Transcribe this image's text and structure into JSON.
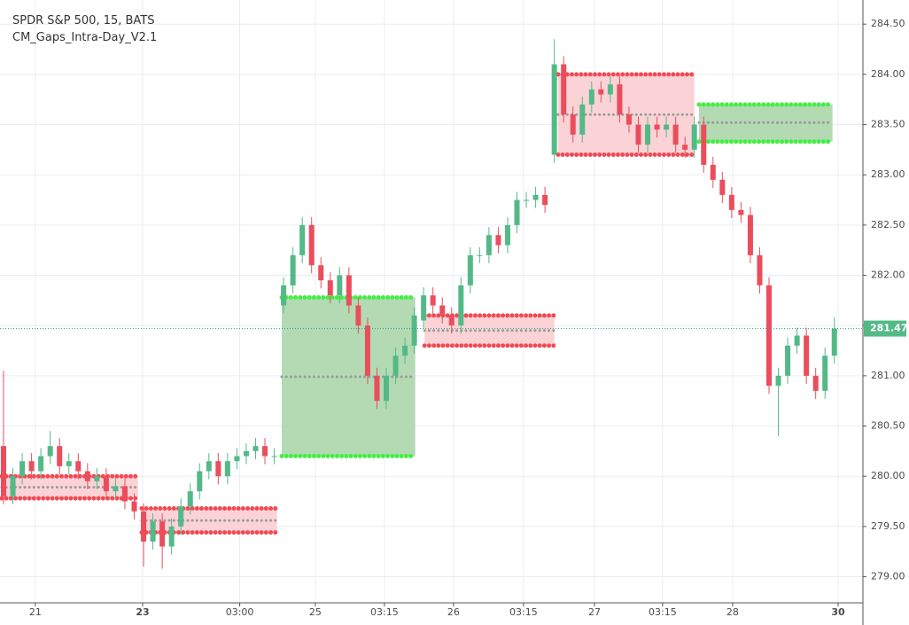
{
  "chart_data": {
    "type": "candlestick",
    "title": "SPDR S&P 500, 15, BATS",
    "subtitle": "CM_Gaps_Intra-Day_V2.1",
    "up_color": "#53b987",
    "down_color": "#eb4d5c",
    "grid": true,
    "xlim": [
      -0.38,
      92.06
    ],
    "ylim": [
      278.74,
      284.74
    ],
    "yticks": [
      {
        "value": 279,
        "label": "279.00"
      },
      {
        "value": 279.5,
        "label": "279.50"
      },
      {
        "value": 280,
        "label": "280.00"
      },
      {
        "value": 280.5,
        "label": "280.50"
      },
      {
        "value": 281,
        "label": "281.00"
      },
      {
        "value": 281.5,
        "label": "281.50"
      },
      {
        "value": 282,
        "label": "282.00"
      },
      {
        "value": 282.5,
        "label": "282.50"
      },
      {
        "value": 283,
        "label": "283.00"
      },
      {
        "value": 283.5,
        "label": "283.50"
      },
      {
        "value": 284,
        "label": "284.00"
      },
      {
        "value": 284.5,
        "label": "284.50"
      }
    ],
    "xticks": [
      {
        "value": 3.4,
        "label": "21"
      },
      {
        "value": 14.9,
        "label": "23"
      },
      {
        "value": 25.3,
        "label": "03:00"
      },
      {
        "value": 33.4,
        "label": "25"
      },
      {
        "value": 40.8,
        "label": "03:15"
      },
      {
        "value": 48.2,
        "label": "26"
      },
      {
        "value": 55.7,
        "label": "03:15"
      },
      {
        "value": 63.3,
        "label": "27"
      },
      {
        "value": 70.6,
        "label": "03:15"
      },
      {
        "value": 78.1,
        "label": "28"
      },
      {
        "value": 89.4,
        "label": "30"
      }
    ],
    "last": 281.47,
    "open": [
      280.3,
      279.8,
      280.0,
      280.15,
      280.05,
      280.2,
      280.3,
      280.1,
      280.15,
      280.05,
      279.95,
      280.0,
      279.85,
      279.9,
      279.75,
      279.65,
      279.35,
      279.55,
      279.3,
      279.5,
      279.7,
      279.85,
      280.05,
      280.15,
      280.0,
      280.15,
      280.2,
      280.25,
      280.3,
      280.2,
      281.7,
      281.9,
      282.2,
      282.5,
      282.1,
      281.95,
      281.8,
      282.0,
      281.7,
      281.5,
      281.0,
      280.75,
      281.0,
      281.2,
      281.3,
      281.55,
      281.8,
      281.7,
      281.6,
      281.5,
      281.9,
      282.2,
      282.2,
      282.4,
      282.3,
      282.5,
      282.75,
      282.75,
      282.8,
      283.2,
      284.1,
      283.6,
      283.4,
      283.7,
      283.85,
      283.8,
      283.9,
      283.6,
      283.5,
      283.3,
      283.5,
      283.45,
      283.5,
      283.3,
      283.25,
      283.5,
      283.1,
      282.95,
      282.8,
      282.65,
      282.6,
      282.2,
      281.9,
      280.9,
      281.0,
      281.3,
      281.4,
      281.0,
      280.85,
      281.2
    ],
    "high": [
      281.05,
      280.08,
      280.23,
      280.23,
      280.28,
      280.45,
      280.38,
      280.23,
      280.23,
      280.13,
      280.08,
      280.08,
      279.98,
      279.98,
      279.83,
      279.73,
      279.63,
      279.63,
      279.58,
      279.78,
      279.93,
      280.13,
      280.23,
      280.23,
      280.23,
      280.28,
      280.33,
      280.38,
      280.38,
      280.28,
      281.98,
      282.28,
      282.58,
      282.58,
      282.18,
      282.03,
      282.08,
      282.08,
      281.78,
      281.58,
      281.08,
      281.08,
      281.28,
      281.38,
      281.68,
      281.88,
      281.88,
      281.78,
      281.68,
      281.98,
      282.28,
      282.28,
      282.48,
      282.48,
      282.58,
      282.83,
      282.83,
      282.88,
      282.88,
      284.35,
      284.18,
      283.68,
      283.78,
      283.93,
      283.93,
      283.98,
      283.98,
      283.68,
      283.58,
      283.58,
      283.58,
      283.58,
      283.58,
      283.38,
      283.58,
      283.58,
      283.18,
      283.03,
      282.88,
      282.73,
      282.68,
      282.28,
      281.98,
      281.08,
      281.38,
      281.48,
      281.48,
      281.08,
      281.28,
      281.58
    ],
    "low": [
      279.72,
      279.72,
      279.92,
      279.97,
      279.97,
      280.12,
      280.02,
      280.02,
      279.97,
      279.87,
      279.87,
      279.77,
      279.77,
      279.67,
      279.57,
      279.1,
      279.27,
      279.08,
      279.22,
      279.42,
      279.62,
      279.77,
      279.97,
      279.92,
      279.92,
      280.07,
      280.12,
      280.17,
      280.12,
      280.12,
      281.62,
      281.82,
      282.12,
      282.02,
      281.87,
      281.72,
      281.72,
      281.62,
      281.42,
      280.92,
      280.67,
      280.67,
      280.92,
      281.12,
      281.22,
      281.47,
      281.62,
      281.52,
      281.42,
      281.42,
      281.82,
      282.12,
      282.12,
      282.22,
      282.22,
      282.42,
      282.67,
      282.67,
      282.62,
      283.12,
      283.52,
      283.32,
      283.32,
      283.62,
      283.72,
      283.72,
      283.52,
      283.42,
      283.22,
      283.22,
      283.37,
      283.37,
      283.22,
      283.17,
      283.17,
      283.02,
      282.87,
      282.72,
      282.57,
      282.52,
      282.12,
      281.82,
      280.82,
      280.4,
      280.92,
      281.22,
      280.92,
      280.77,
      280.77,
      281.12
    ],
    "close": [
      279.8,
      280.0,
      280.15,
      280.05,
      280.2,
      280.3,
      280.1,
      280.15,
      280.05,
      279.95,
      280.0,
      279.85,
      279.9,
      279.75,
      279.65,
      279.35,
      279.55,
      279.3,
      279.5,
      279.7,
      279.85,
      280.05,
      280.15,
      280.0,
      280.15,
      280.2,
      280.25,
      280.3,
      280.2,
      280.2,
      281.9,
      282.2,
      282.5,
      282.1,
      281.95,
      281.8,
      282.0,
      281.7,
      281.5,
      281.0,
      280.75,
      281.0,
      281.2,
      281.3,
      281.6,
      281.8,
      281.7,
      281.6,
      281.5,
      281.9,
      282.2,
      282.2,
      282.4,
      282.3,
      282.5,
      282.75,
      282.75,
      282.8,
      282.7,
      284.1,
      283.6,
      283.4,
      283.7,
      283.85,
      283.8,
      283.9,
      283.6,
      283.5,
      283.3,
      283.5,
      283.45,
      283.5,
      283.3,
      283.25,
      283.5,
      283.1,
      282.95,
      282.8,
      282.65,
      282.6,
      282.2,
      281.9,
      280.9,
      281.0,
      281.3,
      281.4,
      281.0,
      280.85,
      281.2,
      281.47
    ],
    "gaps": [
      {
        "start": -0.2,
        "end": 14.4,
        "top": 280.0,
        "bottom": 279.78,
        "mid": 279.89,
        "color": "#f04a55",
        "fill": "#fbd3d6"
      },
      {
        "start": 14.8,
        "end": 29.3,
        "top": 279.68,
        "bottom": 279.44,
        "mid": 279.56,
        "color": "#f04a55",
        "fill": "#fbd3d6"
      },
      {
        "start": 29.8,
        "end": 44.1,
        "top": 281.78,
        "bottom": 280.2,
        "mid": 280.99,
        "color": "#44ee44",
        "fill": "#b3dab3"
      },
      {
        "start": 45.1,
        "end": 59.0,
        "top": 281.6,
        "bottom": 281.3,
        "mid": 281.45,
        "color": "#f04a55",
        "fill": "#fbd3d6"
      },
      {
        "start": 59.4,
        "end": 74.0,
        "top": 284.0,
        "bottom": 283.2,
        "mid": 283.6,
        "color": "#f04a55",
        "fill": "#fbd3d6"
      },
      {
        "start": 74.5,
        "end": 88.8,
        "top": 283.7,
        "bottom": 283.33,
        "mid": 283.52,
        "color": "#44ee44",
        "fill": "#b3dab3"
      }
    ]
  }
}
